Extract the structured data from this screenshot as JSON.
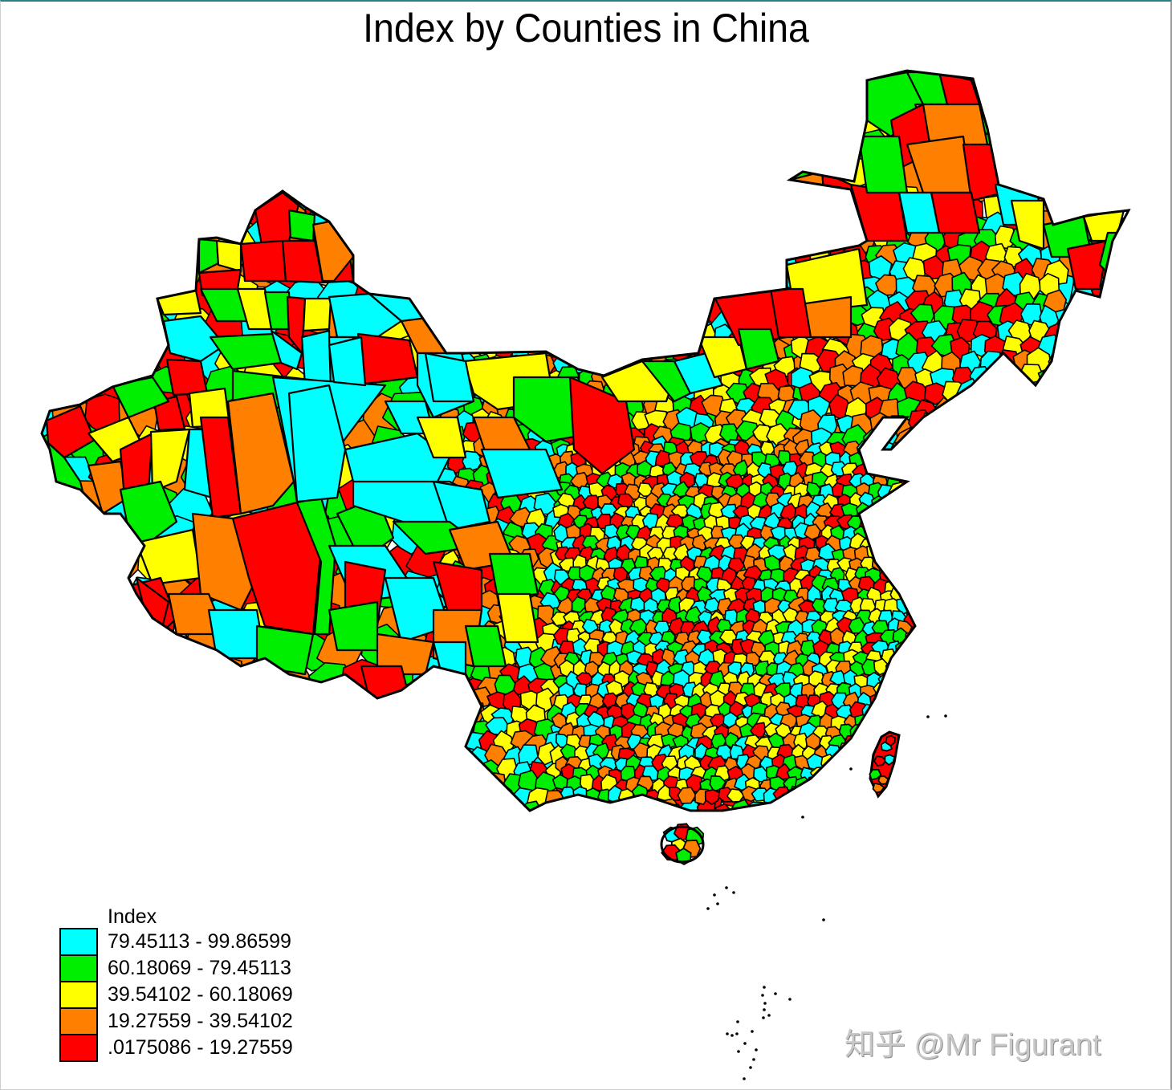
{
  "title": "Index by Counties in China",
  "legend": {
    "title": "Index",
    "items": [
      {
        "label": "79.45113 - 99.86599",
        "color": "#00ffff"
      },
      {
        "label": "60.18069 - 79.45113",
        "color": "#00ee00"
      },
      {
        "label": "39.54102 - 60.18069",
        "color": "#ffff00"
      },
      {
        "label": "19.27559 - 39.54102",
        "color": "#ff7f00"
      },
      {
        "label": ".0175086 - 19.27559",
        "color": "#ff0000"
      }
    ]
  },
  "watermark": "知乎 @Mr Figurant",
  "colors": {
    "border": "#000000",
    "background": "#ffffff",
    "frame_top": "#2a7d8c"
  },
  "chart_data": {
    "type": "choropleth",
    "title": "Index by Counties in China",
    "variable": "Index",
    "unit": "county",
    "classes": [
      {
        "min": 79.45113,
        "max": 99.86599,
        "color": "#00ffff"
      },
      {
        "min": 60.18069,
        "max": 79.45113,
        "color": "#00ee00"
      },
      {
        "min": 39.54102,
        "max": 60.18069,
        "color": "#ffff00"
      },
      {
        "min": 19.27559,
        "max": 39.54102,
        "color": "#ff7f00"
      },
      {
        "min": 0.0175086,
        "max": 19.27559,
        "color": "#ff0000"
      }
    ],
    "legend_position": "bottom-left",
    "regions": [
      {
        "id": "xj-n1",
        "c": 4,
        "p": "318,262 352,240 372,255 360,300 326,305"
      },
      {
        "id": "xj-n2",
        "c": 3,
        "p": "352,240 380,262 392,300 360,300 372,255"
      },
      {
        "id": "xj-n3",
        "c": 1,
        "p": "360,262 392,268 390,300 362,296"
      },
      {
        "id": "xj-n4",
        "c": 4,
        "p": "392,300 408,276 436,320 440,350 402,352"
      },
      {
        "id": "xj-n5",
        "c": 3,
        "p": "390,280 420,274 440,320 416,350 402,350"
      },
      {
        "id": "xj-n6",
        "c": 4,
        "p": "300,304 352,300 356,350 305,350"
      },
      {
        "id": "xj-n7",
        "c": 4,
        "p": "352,300 392,300 402,352 356,350"
      },
      {
        "id": "xj-n8",
        "c": 1,
        "p": "248,298 270,300 272,328 248,340"
      },
      {
        "id": "xj-n9",
        "c": 2,
        "p": "270,300 300,304 300,338 272,330"
      },
      {
        "id": "xj-n10",
        "c": 4,
        "p": "248,340 300,336 296,360 252,368"
      },
      {
        "id": "xj-n11",
        "c": 2,
        "p": "196,372 244,362 250,390 204,392"
      },
      {
        "id": "xj-n12",
        "c": 1,
        "p": "250,360 300,360 330,400 270,400"
      },
      {
        "id": "xj-n13",
        "c": 2,
        "p": "296,360 330,360 338,410 310,410"
      },
      {
        "id": "xj-n14",
        "c": 1,
        "p": "330,364 360,364 362,410 338,410"
      },
      {
        "id": "xj-n15",
        "c": 4,
        "p": "358,370 380,372 376,440 360,420"
      },
      {
        "id": "xj-n16",
        "c": 2,
        "p": "380,372 412,372 410,410 378,412"
      },
      {
        "id": "xj-n17",
        "c": 0,
        "p": "410,370 460,366 500,400 470,420 420,420"
      },
      {
        "id": "xj-n18",
        "c": 0,
        "p": "460,366 510,372 540,410 500,400"
      },
      {
        "id": "xj-n19",
        "c": 3,
        "p": "500,400 540,395 560,440 520,440"
      },
      {
        "id": "xj-c1",
        "c": 0,
        "p": "204,400 250,394 280,430 250,450 212,440"
      },
      {
        "id": "xj-c2",
        "c": 1,
        "p": "262,420 340,416 350,452 290,460"
      },
      {
        "id": "xj-c3",
        "c": 0,
        "p": "338,412 376,440 370,460 350,452"
      },
      {
        "id": "xj-c4",
        "c": 0,
        "p": "376,420 410,412 412,480 380,480"
      },
      {
        "id": "xj-c5",
        "c": 0,
        "p": "410,420 440,420 450,480 412,480"
      },
      {
        "id": "xj-c6",
        "c": 4,
        "p": "446,416 510,424 520,470 455,478"
      },
      {
        "id": "xj-c7",
        "c": 0,
        "p": "520,440 575,440 590,500 540,520 520,480"
      },
      {
        "id": "xj-c8",
        "c": 1,
        "p": "290,462 412,476 416,505 290,510"
      },
      {
        "id": "xj-c9",
        "c": 4,
        "p": "208,448 250,450 258,490 216,492"
      },
      {
        "id": "xj-c10",
        "c": 2,
        "p": "236,490 280,484 286,530 240,532"
      },
      {
        "id": "xj-c11",
        "c": 4,
        "p": "192,500 220,494 230,534 198,536"
      },
      {
        "id": "xj-c12",
        "c": 1,
        "p": "140,480 190,470 210,500 160,520"
      },
      {
        "id": "xj-w1",
        "c": 4,
        "p": "58,524 100,506 118,548 80,570 60,552"
      },
      {
        "id": "xj-w2",
        "c": 1,
        "p": "60,552 80,570 100,600 110,640 72,610"
      },
      {
        "id": "xj-w3",
        "c": 2,
        "p": "110,540 160,520 180,560 140,575"
      },
      {
        "id": "xj-w4",
        "c": 3,
        "p": "110,580 150,575 160,620 128,640"
      },
      {
        "id": "xj-w5",
        "c": 4,
        "p": "150,560 190,540 185,610 155,620"
      },
      {
        "id": "xj-w6",
        "c": 2,
        "p": "188,538 236,535 220,600 190,612"
      },
      {
        "id": "xj-w7",
        "c": 0,
        "p": "236,535 270,535 264,620 230,610"
      },
      {
        "id": "xj-w8",
        "c": 4,
        "p": "250,520 284,520 300,640 265,645"
      },
      {
        "id": "xj-w9",
        "c": 3,
        "p": "284,500 340,490 366,600 340,630 300,640"
      },
      {
        "id": "xj-w10",
        "c": 0,
        "p": "340,470 480,480 420,560 405,640 370,625 366,600"
      },
      {
        "id": "xj-w11",
        "c": 1,
        "p": "150,610 200,600 220,650 180,680 160,660"
      },
      {
        "id": "xj-s1",
        "c": 2,
        "p": "170,676 240,660 250,720 190,728"
      },
      {
        "id": "xj-s2",
        "c": 3,
        "p": "240,640 290,646 330,700 300,760 250,740"
      },
      {
        "id": "xj-s3",
        "c": 4,
        "p": "290,646 370,626 400,680 390,790 330,780 310,720"
      },
      {
        "id": "xj-s4",
        "c": 1,
        "p": "370,626 400,620 418,680 410,790 392,790 400,700"
      },
      {
        "id": "xj-s5",
        "c": 1,
        "p": "420,640 470,620 490,670 450,700"
      },
      {
        "id": "xj-s6",
        "c": 0,
        "p": "410,680 480,680 520,740 440,750"
      },
      {
        "id": "xj-s7",
        "c": 4,
        "p": "430,700 480,710 470,780 430,760"
      },
      {
        "id": "xj-s8",
        "c": 1,
        "p": "410,760 470,750 470,810 420,810"
      },
      {
        "id": "xj-s9",
        "c": 4,
        "p": "160,730 200,720 220,770 200,790"
      },
      {
        "id": "xj-s10",
        "c": 3,
        "p": "210,740 260,740 280,790 220,790"
      },
      {
        "id": "xj-s11",
        "c": 0,
        "p": "260,760 320,760 330,820 270,820"
      },
      {
        "id": "xj-s12",
        "c": 1,
        "p": "320,780 390,790 380,840 320,830"
      },
      {
        "id": "xj-s13",
        "c": 4,
        "p": "170,720 210,750 200,790 180,760"
      },
      {
        "id": "xj-t1",
        "c": 0,
        "p": "430,560 520,540 560,570 540,610 440,600"
      },
      {
        "id": "xj-t2",
        "c": 0,
        "p": "440,600 560,600 600,620 580,650 520,656 440,630"
      },
      {
        "id": "xj-t3",
        "c": 0,
        "p": "540,600 600,610 610,650 560,660"
      },
      {
        "id": "xj-t4",
        "c": 1,
        "p": "490,650 560,650 600,680 530,690"
      },
      {
        "id": "xj-t5",
        "c": 0,
        "p": "410,430 450,420 455,480 416,476"
      },
      {
        "id": "xj-t6",
        "c": 0,
        "p": "360,490 410,480 430,560 420,620 370,625"
      },
      {
        "id": "xj-t7",
        "c": 0,
        "p": "480,500 530,500 540,540 500,540"
      },
      {
        "id": "xj-t8",
        "c": 2,
        "p": "520,520 570,520 580,570 540,570"
      },
      {
        "id": "gs1",
        "c": 2,
        "p": "578,450 680,440 690,500 620,510 590,490"
      },
      {
        "id": "gs2",
        "c": 1,
        "p": "640,470 720,470 740,540 680,550 640,520"
      },
      {
        "id": "gs3",
        "c": 4,
        "p": "710,470 780,500 790,560 750,590 715,560"
      },
      {
        "id": "gs4",
        "c": 0,
        "p": "530,440 580,450 590,500 540,500"
      },
      {
        "id": "gs5",
        "c": 3,
        "p": "590,520 640,520 660,560 610,580"
      },
      {
        "id": "gs6",
        "c": 0,
        "p": "600,560 680,560 700,610 620,620"
      },
      {
        "id": "gs7",
        "c": 3,
        "p": "560,660 620,650 640,700 580,710"
      },
      {
        "id": "gs8",
        "c": 1,
        "p": "610,690 660,690 670,740 620,745"
      },
      {
        "id": "gs9",
        "c": 4,
        "p": "540,700 600,710 600,760 560,770"
      },
      {
        "id": "gs10",
        "c": 0,
        "p": "480,720 540,720 560,780 500,800"
      },
      {
        "id": "gs11",
        "c": 3,
        "p": "540,760 600,760 590,830 540,820"
      },
      {
        "id": "gs12",
        "c": 1,
        "p": "580,780 620,780 630,830 590,830"
      },
      {
        "id": "gs13",
        "c": 3,
        "p": "470,790 540,800 530,840 470,840"
      },
      {
        "id": "gs14",
        "c": 4,
        "p": "450,830 500,830 510,870 460,870"
      },
      {
        "id": "gs15",
        "c": 0,
        "p": "540,800 580,800 580,840 550,840"
      },
      {
        "id": "gs16",
        "c": 2,
        "p": "620,740 660,740 670,800 630,800"
      },
      {
        "id": "im1",
        "c": 2,
        "p": "750,470 800,450 840,470 830,500 770,500"
      },
      {
        "id": "im2",
        "c": 1,
        "p": "800,450 850,450 860,490 840,500"
      },
      {
        "id": "im3",
        "c": 0,
        "p": "840,450 880,440 900,480 860,490"
      },
      {
        "id": "im4",
        "c": 2,
        "p": "870,420 920,420 930,460 890,470"
      },
      {
        "id": "im5",
        "c": 4,
        "p": "890,370 960,360 980,420 920,430"
      },
      {
        "id": "im6",
        "c": 1,
        "p": "920,410 960,410 970,450 930,460"
      },
      {
        "id": "im7",
        "c": 2,
        "p": "980,330 1070,310 1080,380 990,390"
      },
      {
        "id": "im8",
        "c": 3,
        "p": "990,380 1060,370 1060,420 1000,420"
      },
      {
        "id": "im9",
        "c": 4,
        "p": "960,360 1000,360 1010,420 970,420"
      },
      {
        "id": "im10",
        "c": 3,
        "p": "984,224 1024,214 1030,280 990,286"
      },
      {
        "id": "im11",
        "c": 4,
        "p": "1024,214 1060,230 1080,300 1040,310 1030,280"
      },
      {
        "id": "im12",
        "c": 4,
        "p": "1060,230 1120,240 1130,300 1080,300"
      },
      {
        "id": "hl1",
        "c": 1,
        "p": "1080,100 1130,90 1150,130 1110,170 1080,150"
      },
      {
        "id": "hl2",
        "c": 1,
        "p": "1130,90 1170,90 1180,130 1150,130"
      },
      {
        "id": "hl3",
        "c": 4,
        "p": "1170,90 1210,100 1220,130 1180,130"
      },
      {
        "id": "hl4",
        "c": 3,
        "p": "1140,130 1220,130 1230,180 1200,200 1160,180"
      },
      {
        "id": "hl5",
        "c": 4,
        "p": "1110,150 1150,130 1160,190 1120,210"
      },
      {
        "id": "hl6",
        "c": 3,
        "p": "1130,180 1200,170 1210,240 1150,240"
      },
      {
        "id": "hl7",
        "c": 1,
        "p": "1070,170 1120,170 1130,240 1080,240"
      },
      {
        "id": "hl8",
        "c": 4,
        "p": "1200,180 1240,180 1250,240 1210,250"
      },
      {
        "id": "hl9",
        "c": 0,
        "p": "1240,230 1290,230 1300,280 1250,280"
      },
      {
        "id": "hl10",
        "c": 2,
        "p": "1260,250 1300,250 1300,310 1270,300"
      },
      {
        "id": "hl11",
        "c": 4,
        "p": "1160,240 1210,240 1220,290 1170,290"
      },
      {
        "id": "hl12",
        "c": 0,
        "p": "1120,240 1160,240 1170,290 1130,290"
      },
      {
        "id": "hl13",
        "c": 1,
        "p": "1300,280 1350,270 1360,320 1310,320"
      },
      {
        "id": "hl14",
        "c": 2,
        "p": "1350,270 1400,262 1390,300 1360,300"
      },
      {
        "id": "hl15",
        "c": 4,
        "p": "1330,310 1380,300 1370,360 1340,360"
      },
      {
        "id": "hl16",
        "c": 1,
        "p": "1380,290 1400,290 1380,340 1370,330"
      }
    ]
  }
}
